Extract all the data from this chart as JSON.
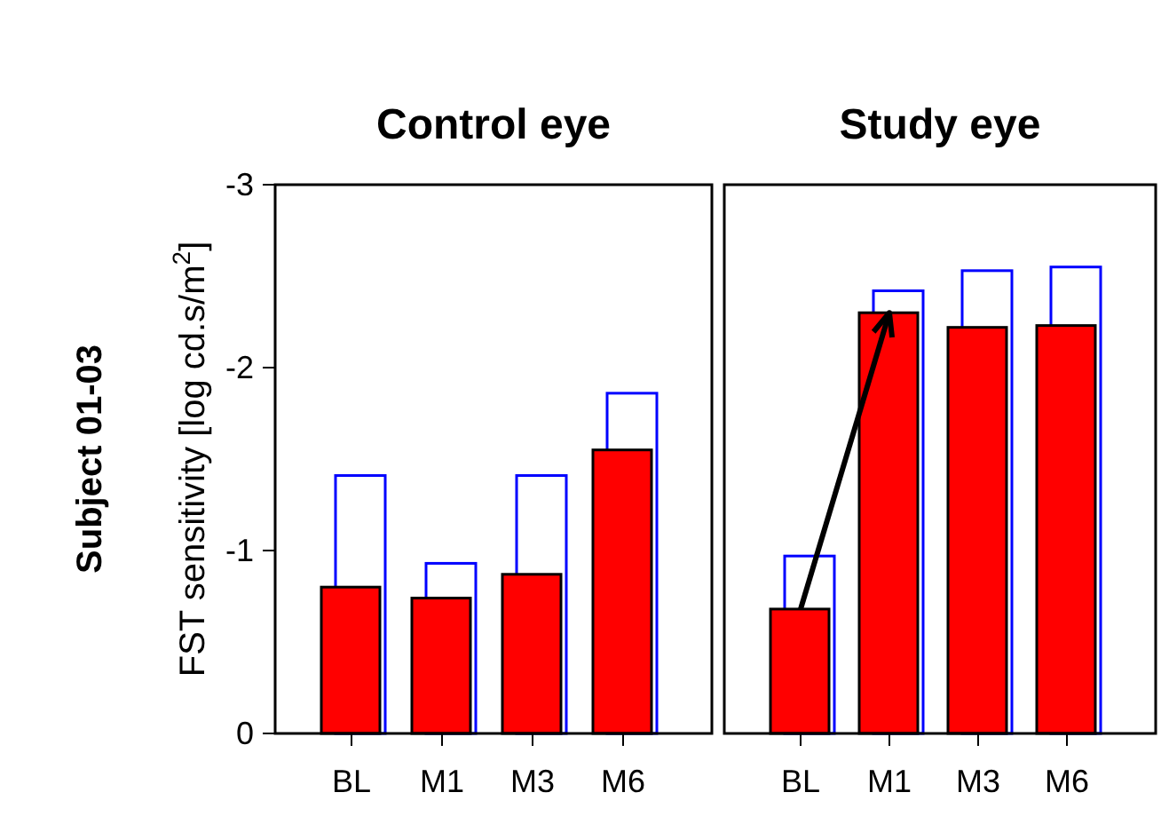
{
  "chart_data": [
    {
      "type": "bar",
      "title": "Control eye",
      "ylabel": "FST sensitivity [log cd.s/m$^{2}$]",
      "annotations": [
        "Subject 01-03"
      ],
      "categories": [
        "BL",
        "M1",
        "M3",
        "M6"
      ],
      "ylim": [
        0,
        -3
      ],
      "yticks": [
        0,
        -1,
        -2,
        -3
      ],
      "series": [
        {
          "color": "#ff0000",
          "values": [
            -0.8,
            -0.74,
            -0.87,
            -1.55
          ]
        },
        {
          "color": "#0000ff",
          "values": [
            -1.41,
            -0.93,
            -1.41,
            -1.86
          ]
        }
      ]
    },
    {
      "type": "bar",
      "title": "Study eye",
      "categories": [
        "BL",
        "M1",
        "M3",
        "M6"
      ],
      "ylim": [
        0,
        -3
      ],
      "tick_labels": "x",
      "series": [
        {
          "color": "#ff0000",
          "values": [
            -0.68,
            -2.3,
            -2.22,
            -2.23
          ]
        },
        {
          "color": "#0000ff",
          "values": [
            -0.97,
            -2.42,
            -2.53,
            -2.55
          ]
        }
      ]
    }
  ]
}
